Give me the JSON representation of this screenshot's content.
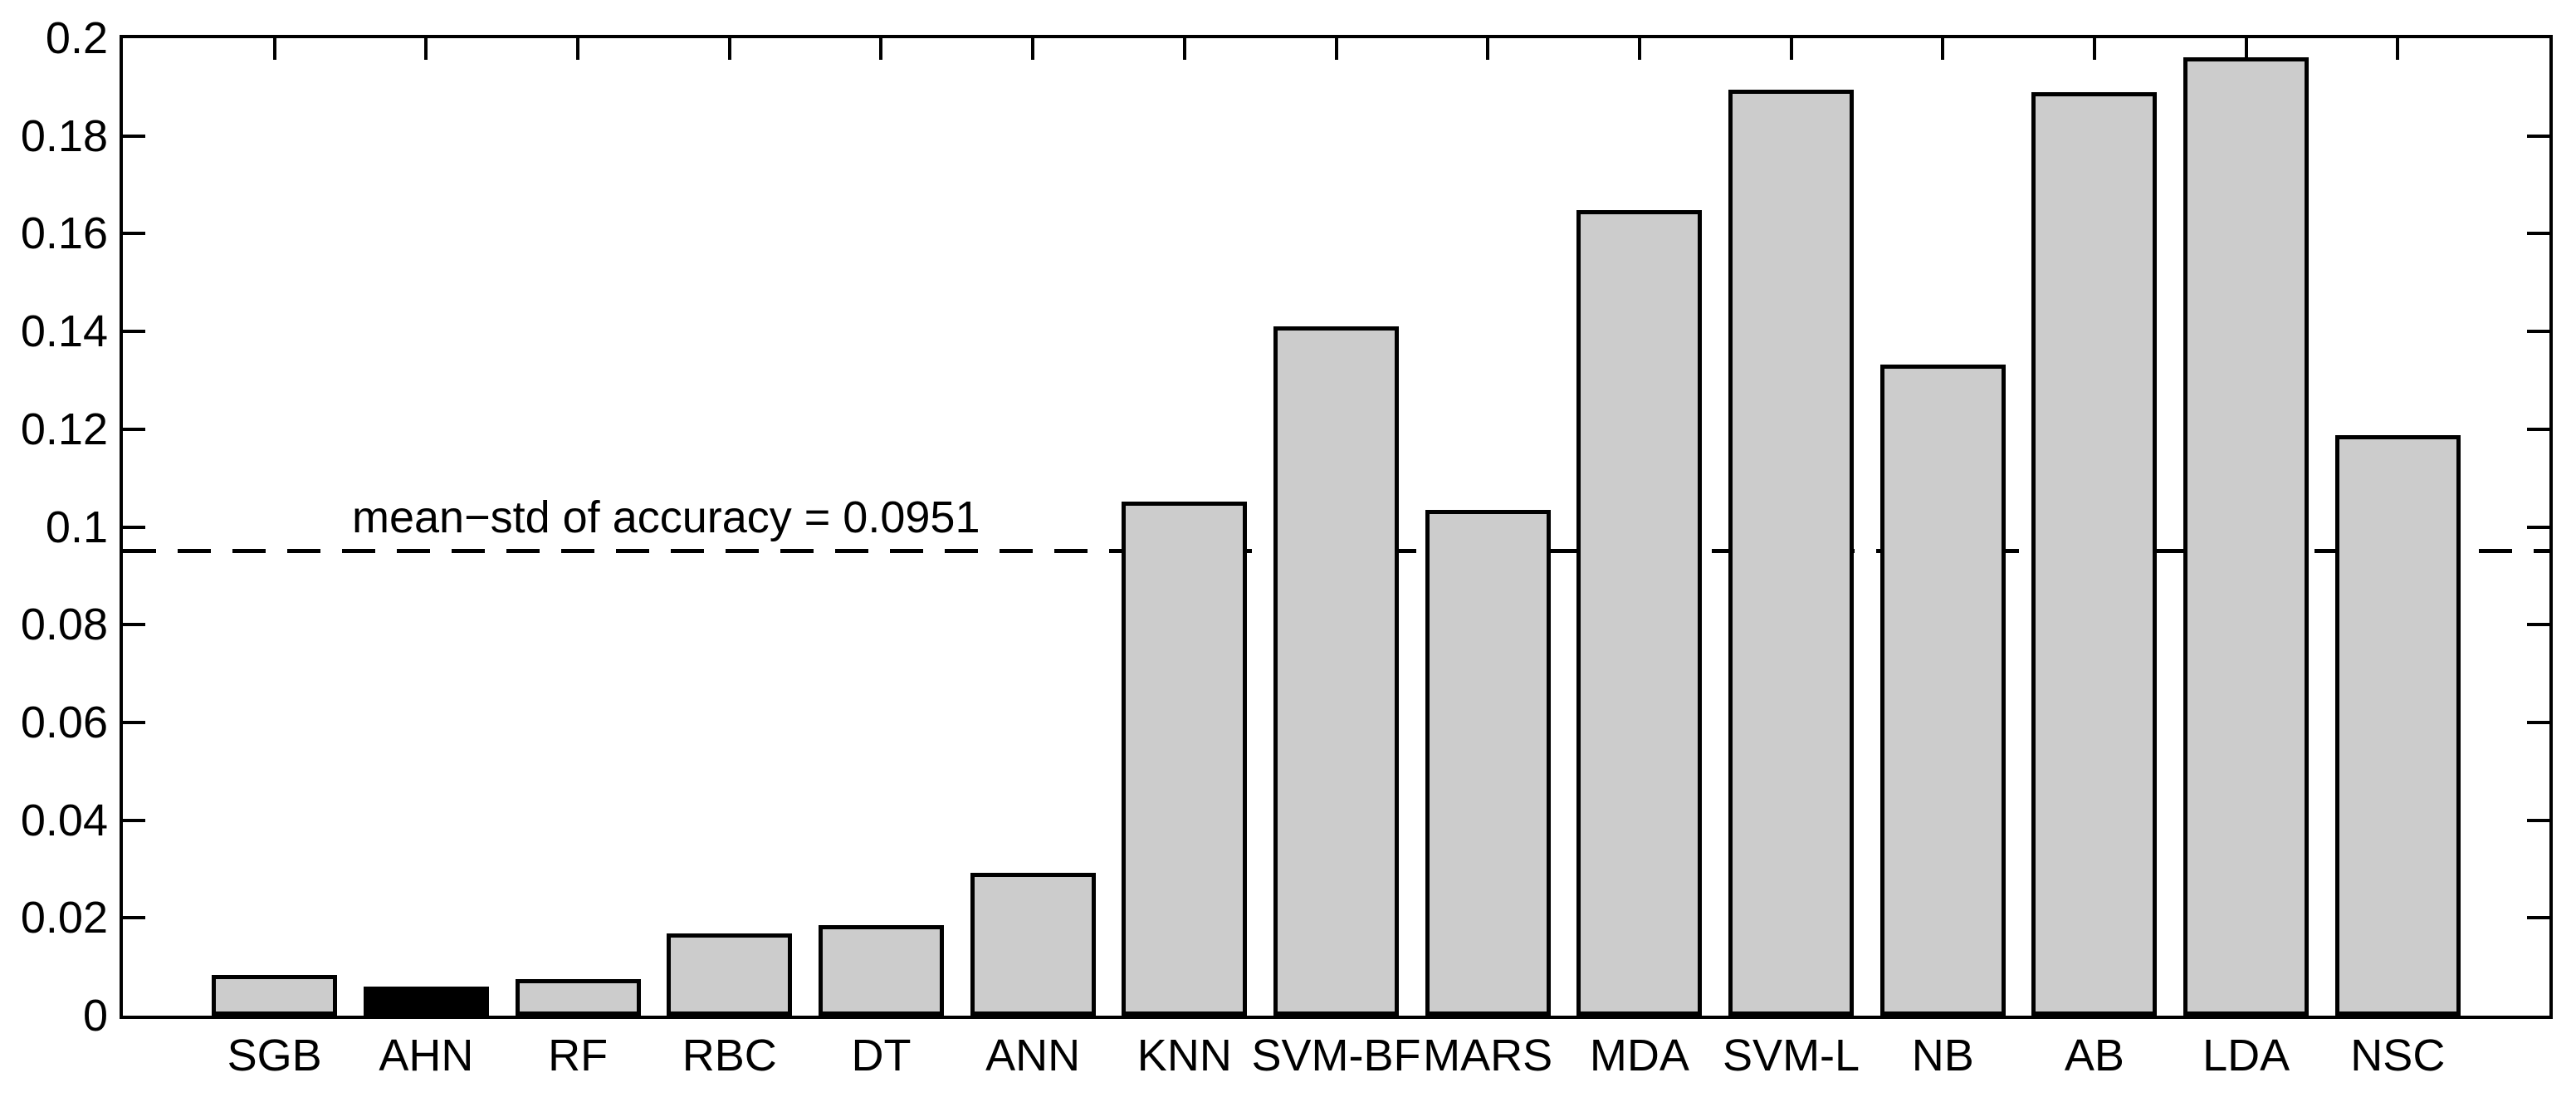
{
  "figure": {
    "background": "#ffffff"
  },
  "chart_data": {
    "type": "bar",
    "title": "",
    "xlabel": "",
    "ylabel": "",
    "categories": [
      "SGB",
      "AHN",
      "RF",
      "RBC",
      "DT",
      "ANN",
      "KNN",
      "SVM-BF",
      "MARS",
      "MDA",
      "SVM-L",
      "NB",
      "AB",
      "LDA",
      "NSC"
    ],
    "values": [
      0.0084,
      0.0059,
      0.0075,
      0.0169,
      0.0186,
      0.0292,
      0.1052,
      0.141,
      0.1035,
      0.1649,
      0.1894,
      0.1332,
      0.1889,
      0.1961,
      0.1188
    ],
    "highlight_index": 1,
    "highlight_category": "AHN",
    "ylim": [
      0,
      0.2
    ],
    "yticks": {
      "values": [
        0,
        0.02,
        0.04,
        0.06,
        0.08,
        0.1,
        0.12,
        0.14,
        0.16,
        0.18,
        0.2
      ],
      "labels": [
        "0",
        "0.02",
        "0.04",
        "0.06",
        "0.08",
        "0.1",
        "0.12",
        "0.14",
        "0.16",
        "0.18",
        "0.2"
      ]
    },
    "threshold": {
      "value": 0.0951,
      "label": "mean−std of accuracy = 0.0951",
      "line_style": "dashed"
    },
    "colors": {
      "bar_fill": "#cccccc",
      "bar_highlight": "#000000",
      "edge": "#000000",
      "axis": "#000000",
      "background": "#ffffff"
    },
    "legend": "none",
    "grid": false
  }
}
